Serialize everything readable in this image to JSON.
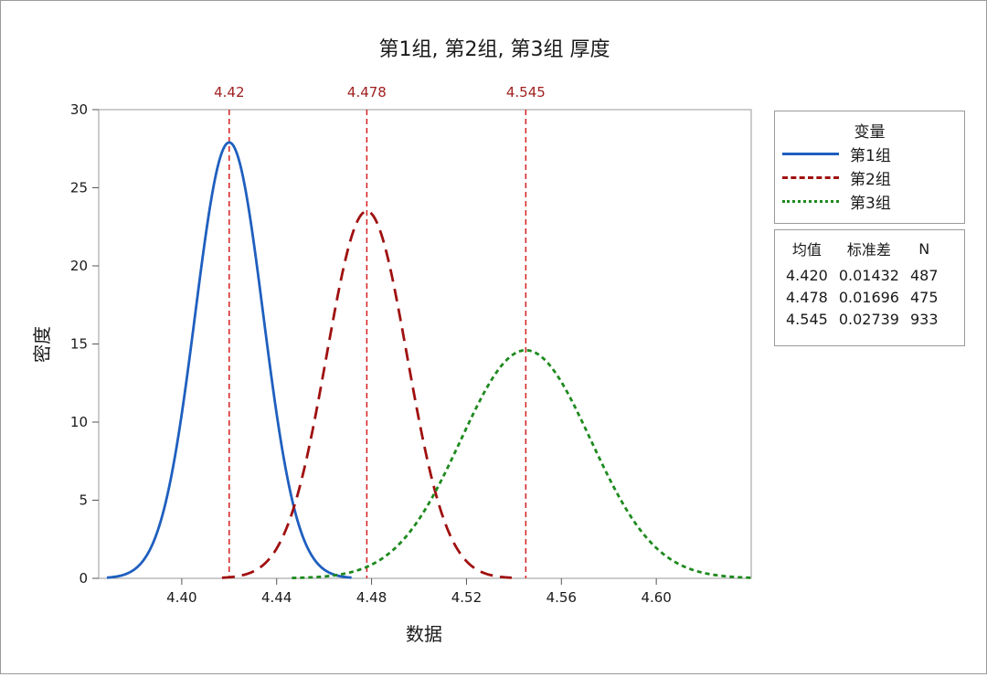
{
  "chart_data": {
    "type": "line",
    "title": "第1组, 第2组, 第3组 厚度",
    "xlabel": "数据",
    "ylabel": "密度",
    "xlim": [
      4.365,
      4.64
    ],
    "ylim": [
      0,
      30
    ],
    "x_ticks": [
      "4.40",
      "4.44",
      "4.48",
      "4.52",
      "4.56",
      "4.60"
    ],
    "y_ticks": [
      "0",
      "5",
      "10",
      "15",
      "20",
      "25",
      "30"
    ],
    "grid": false,
    "legend": {
      "title": "变量",
      "placement": "right"
    },
    "series": [
      {
        "name": "第1组",
        "mean": 4.42,
        "stdev": 0.01432,
        "n": 487,
        "peak_density": 27.9,
        "color": "#1f5fbf",
        "line_style": "solid"
      },
      {
        "name": "第2组",
        "mean": 4.478,
        "stdev": 0.01696,
        "n": 475,
        "peak_density": 23.5,
        "color": "#a01010",
        "line_style": "long-dash"
      },
      {
        "name": "第3组",
        "mean": 4.545,
        "stdev": 0.02739,
        "n": 933,
        "peak_density": 14.6,
        "color": "#1e8a1e",
        "line_style": "short-dash"
      }
    ],
    "reference_lines": [
      {
        "x": 4.42,
        "label": "4.42",
        "color": "#d62020"
      },
      {
        "x": 4.478,
        "label": "4.478",
        "color": "#d62020"
      },
      {
        "x": 4.545,
        "label": "4.545",
        "color": "#d62020"
      }
    ],
    "stats_table": {
      "headers": [
        "均值",
        "标准差",
        "N"
      ],
      "rows": [
        [
          "4.420",
          "0.01432",
          "487"
        ],
        [
          "4.478",
          "0.01696",
          "475"
        ],
        [
          "4.545",
          "0.02739",
          "933"
        ]
      ]
    }
  }
}
